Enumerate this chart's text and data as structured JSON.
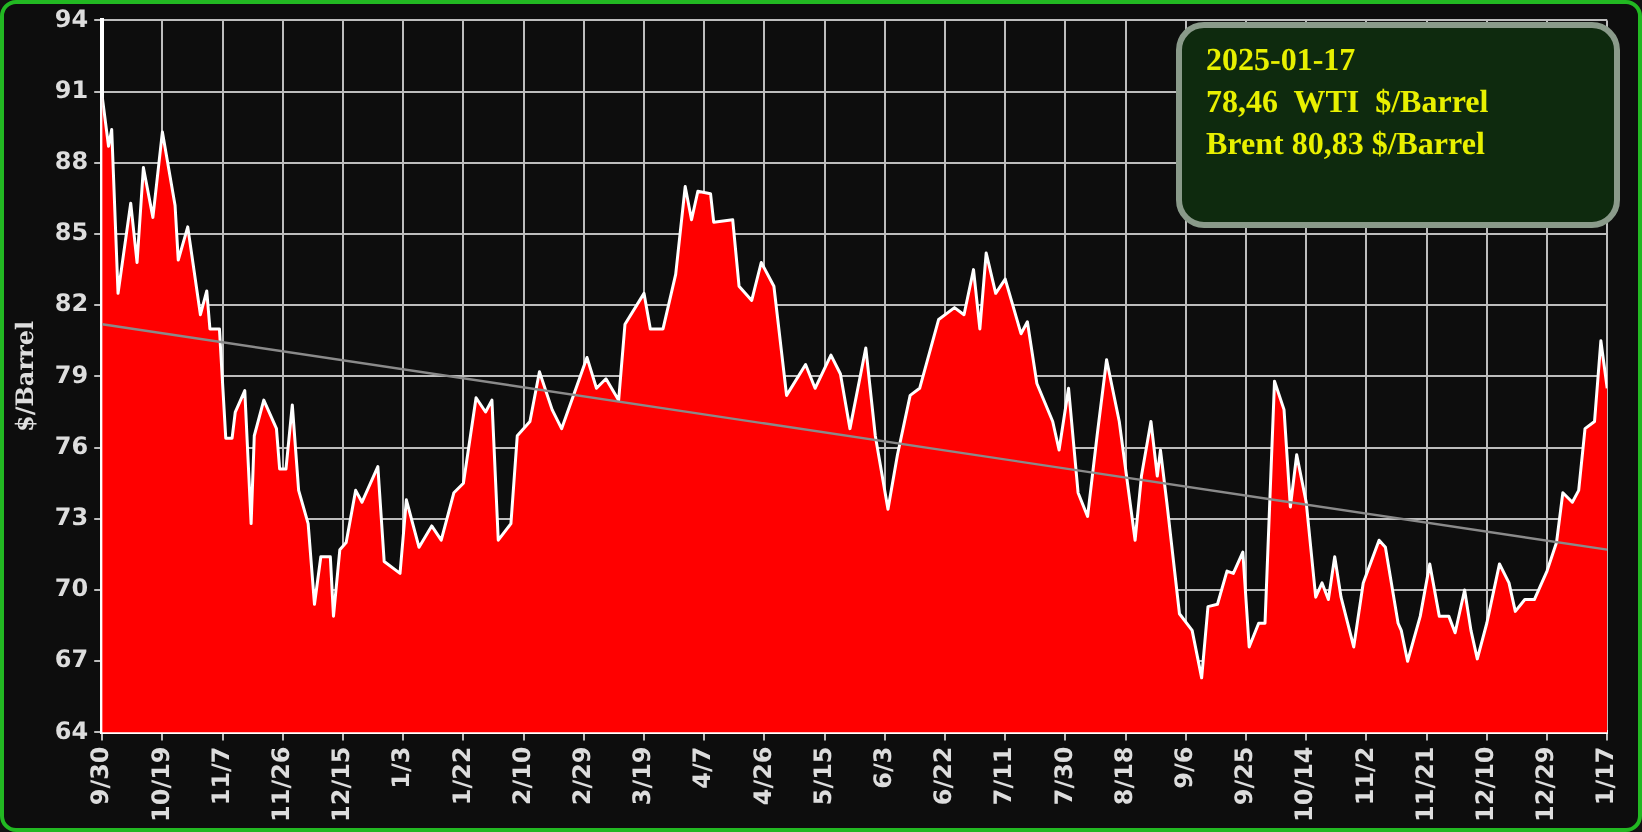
{
  "chart_data": {
    "type": "area",
    "ylabel": "$/Barrel",
    "annotations": [
      "2025-01-17",
      "78,46  WTI  $/Barrel",
      "Brent 80,83 $/Barrel"
    ],
    "xlim": [
      "2023-09-30",
      "2025-01-17"
    ],
    "xticks": [
      {
        "value": "2023-09-30",
        "label": "9/30"
      },
      {
        "value": "2023-10-19",
        "label": "10/19"
      },
      {
        "value": "2023-11-07",
        "label": "11/7"
      },
      {
        "value": "2023-11-26",
        "label": "11/26"
      },
      {
        "value": "2023-12-15",
        "label": "12/15"
      },
      {
        "value": "2024-01-03",
        "label": "1/3"
      },
      {
        "value": "2024-01-22",
        "label": "1/22"
      },
      {
        "value": "2024-02-10",
        "label": "2/10"
      },
      {
        "value": "2024-02-29",
        "label": "2/29"
      },
      {
        "value": "2024-03-19",
        "label": "3/19"
      },
      {
        "value": "2024-04-07",
        "label": "4/7"
      },
      {
        "value": "2024-04-26",
        "label": "4/26"
      },
      {
        "value": "2024-05-15",
        "label": "5/15"
      },
      {
        "value": "2024-06-03",
        "label": "6/3"
      },
      {
        "value": "2024-06-22",
        "label": "6/22"
      },
      {
        "value": "2024-07-11",
        "label": "7/11"
      },
      {
        "value": "2024-07-30",
        "label": "7/30"
      },
      {
        "value": "2024-08-18",
        "label": "8/18"
      },
      {
        "value": "2024-09-06",
        "label": "9/6"
      },
      {
        "value": "2024-09-25",
        "label": "9/25"
      },
      {
        "value": "2024-10-14",
        "label": "10/14"
      },
      {
        "value": "2024-11-02",
        "label": "11/2"
      },
      {
        "value": "2024-11-21",
        "label": "11/21"
      },
      {
        "value": "2024-12-10",
        "label": "12/10"
      },
      {
        "value": "2024-12-29",
        "label": "12/29"
      },
      {
        "value": "2025-01-17",
        "label": "1/17"
      }
    ],
    "ylim": [
      64,
      94
    ],
    "yticks": [
      64,
      67,
      70,
      73,
      76,
      79,
      82,
      85,
      88,
      91,
      94
    ],
    "grid": true,
    "legend": false,
    "marker": "none",
    "series": [
      {
        "color": "#ff0000",
        "x": [
          "2023-09-30",
          "2023-10-02",
          "2023-10-03",
          "2023-10-05",
          "2023-10-09",
          "2023-10-11",
          "2023-10-13",
          "2023-10-16",
          "2023-10-19",
          "2023-10-23",
          "2023-10-24",
          "2023-10-27",
          "2023-10-31",
          "2023-11-02",
          "2023-11-03",
          "2023-11-06",
          "2023-11-08",
          "2023-11-10",
          "2023-11-11",
          "2023-11-14",
          "2023-11-16",
          "2023-11-17",
          "2023-11-20",
          "2023-11-24",
          "2023-11-25",
          "2023-11-27",
          "2023-11-29",
          "2023-12-01",
          "2023-12-04",
          "2023-12-06",
          "2023-12-08",
          "2023-12-11",
          "2023-12-12",
          "2023-12-14",
          "2023-12-16",
          "2023-12-19",
          "2023-12-21",
          "2023-12-26",
          "2023-12-28",
          "2024-01-02",
          "2024-01-04",
          "2024-01-08",
          "2024-01-12",
          "2024-01-15",
          "2024-01-19",
          "2024-01-22",
          "2024-01-26",
          "2024-01-29",
          "2024-01-31",
          "2024-02-02",
          "2024-02-06",
          "2024-02-08",
          "2024-02-12",
          "2024-02-15",
          "2024-02-19",
          "2024-02-22",
          "2024-03-01",
          "2024-03-04",
          "2024-03-07",
          "2024-03-11",
          "2024-03-13",
          "2024-03-19",
          "2024-03-21",
          "2024-03-25",
          "2024-03-29",
          "2024-04-01",
          "2024-04-03",
          "2024-04-05",
          "2024-04-09",
          "2024-04-10",
          "2024-04-16",
          "2024-04-18",
          "2024-04-22",
          "2024-04-25",
          "2024-04-29",
          "2024-05-03",
          "2024-05-09",
          "2024-05-12",
          "2024-05-17",
          "2024-05-20",
          "2024-05-23",
          "2024-05-28",
          "2024-05-31",
          "2024-06-04",
          "2024-06-07",
          "2024-06-11",
          "2024-06-14",
          "2024-06-20",
          "2024-06-25",
          "2024-06-28",
          "2024-07-01",
          "2024-07-03",
          "2024-07-05",
          "2024-07-08",
          "2024-07-11",
          "2024-07-16",
          "2024-07-18",
          "2024-07-21",
          "2024-07-26",
          "2024-07-28",
          "2024-07-31",
          "2024-08-03",
          "2024-08-06",
          "2024-08-09",
          "2024-08-12",
          "2024-08-16",
          "2024-08-21",
          "2024-08-23",
          "2024-08-26",
          "2024-08-28",
          "2024-08-29",
          "2024-08-31",
          "2024-09-04",
          "2024-09-08",
          "2024-09-11",
          "2024-09-13",
          "2024-09-16",
          "2024-09-19",
          "2024-09-21",
          "2024-09-24",
          "2024-09-26",
          "2024-09-29",
          "2024-10-01",
          "2024-10-04",
          "2024-10-07",
          "2024-10-09",
          "2024-10-11",
          "2024-10-14",
          "2024-10-17",
          "2024-10-19",
          "2024-10-21",
          "2024-10-23",
          "2024-10-25",
          "2024-10-29",
          "2024-11-01",
          "2024-11-06",
          "2024-11-08",
          "2024-11-12",
          "2024-11-13",
          "2024-11-15",
          "2024-11-19",
          "2024-11-22",
          "2024-11-25",
          "2024-11-28",
          "2024-11-30",
          "2024-12-03",
          "2024-12-05",
          "2024-12-07",
          "2024-12-10",
          "2024-12-14",
          "2024-12-17",
          "2024-12-19",
          "2024-12-22",
          "2024-12-25",
          "2024-12-29",
          "2025-01-01",
          "2025-01-03",
          "2025-01-06",
          "2025-01-08",
          "2025-01-10",
          "2025-01-13",
          "2025-01-15",
          "2025-01-17"
        ],
        "values": [
          90.8,
          88.7,
          89.4,
          82.5,
          86.3,
          83.8,
          87.8,
          85.7,
          89.3,
          86.2,
          83.9,
          85.3,
          81.6,
          82.6,
          81.0,
          81.0,
          76.4,
          76.4,
          77.5,
          78.4,
          72.8,
          76.5,
          78.0,
          76.8,
          75.1,
          75.1,
          77.8,
          74.2,
          72.8,
          69.4,
          71.4,
          71.4,
          68.9,
          71.7,
          72.0,
          74.2,
          73.7,
          75.2,
          71.2,
          70.7,
          73.8,
          71.8,
          72.7,
          72.1,
          74.1,
          74.5,
          78.1,
          77.5,
          78.0,
          72.1,
          72.8,
          76.5,
          77.1,
          79.2,
          77.6,
          76.8,
          79.8,
          78.5,
          78.9,
          78.0,
          81.2,
          82.5,
          81.0,
          81.0,
          83.3,
          87.0,
          85.6,
          86.8,
          86.7,
          85.5,
          85.6,
          82.8,
          82.2,
          83.8,
          82.8,
          78.2,
          79.5,
          78.5,
          79.9,
          79.1,
          76.8,
          80.2,
          76.5,
          73.4,
          75.7,
          78.2,
          78.5,
          81.4,
          81.9,
          81.6,
          83.5,
          81.0,
          84.2,
          82.5,
          83.1,
          80.8,
          81.3,
          78.7,
          77.1,
          75.9,
          78.5,
          74.1,
          73.1,
          76.5,
          79.7,
          77.1,
          72.1,
          74.8,
          77.1,
          74.8,
          75.9,
          73.7,
          69.0,
          68.3,
          66.3,
          69.3,
          69.4,
          70.8,
          70.7,
          71.6,
          67.6,
          68.6,
          68.6,
          78.8,
          77.6,
          73.5,
          75.7,
          73.7,
          69.7,
          70.3,
          69.6,
          71.4,
          69.7,
          67.6,
          70.3,
          72.1,
          71.8,
          68.6,
          68.3,
          67.0,
          68.9,
          71.1,
          68.9,
          68.9,
          68.2,
          70.0,
          68.3,
          67.1,
          68.6,
          71.1,
          70.3,
          69.1,
          69.6,
          69.6,
          70.8,
          72.0,
          74.1,
          73.7,
          74.2,
          76.8,
          77.1,
          80.5,
          78.5
        ]
      },
      {
        "type": "line",
        "color": "#8a8a8a",
        "x": [
          "2023-09-30",
          "2025-01-17"
        ],
        "values": [
          81.2,
          71.7
        ]
      }
    ]
  }
}
